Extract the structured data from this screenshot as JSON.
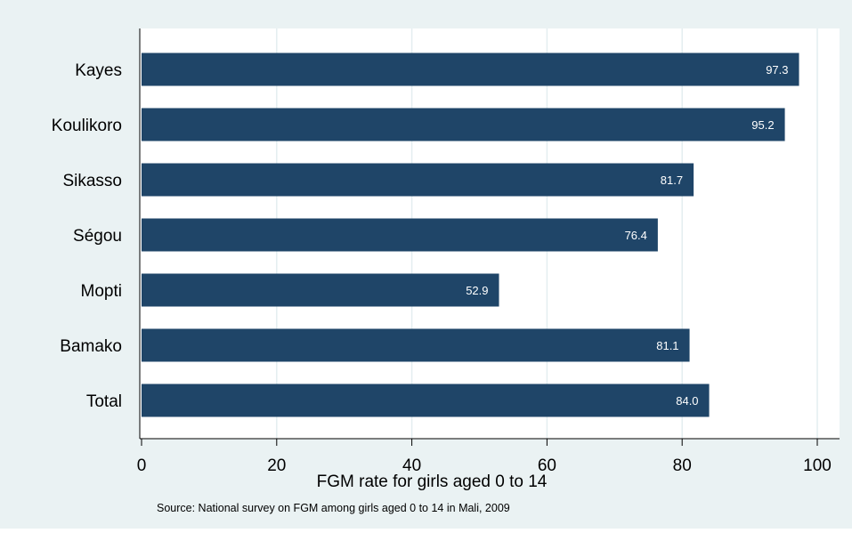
{
  "chart_data": {
    "type": "bar",
    "orientation": "horizontal",
    "categories": [
      "Kayes",
      "Koulikoro",
      "Sikasso",
      "Ségou",
      "Mopti",
      "Bamako",
      "Total"
    ],
    "values": [
      97.3,
      95.2,
      81.7,
      76.4,
      52.9,
      81.1,
      84.0
    ],
    "value_labels": [
      "97.3",
      "95.2",
      "81.7",
      "76.4",
      "52.9",
      "81.1",
      "84.0"
    ],
    "xlabel": "FGM rate for girls aged 0 to 14",
    "xlim": [
      0,
      100
    ],
    "xticks": [
      "0",
      "20",
      "40",
      "60",
      "80",
      "100"
    ],
    "grid": true,
    "note": "Source:  National survey on FGM among girls aged 0 to 14 in Mali, 2009",
    "colors": {
      "bar": "#1f4568",
      "background": "#eaf2f3",
      "plot_background": "#ffffff",
      "gridline": "#e4eef0",
      "bar_label": "#ffffff"
    }
  }
}
